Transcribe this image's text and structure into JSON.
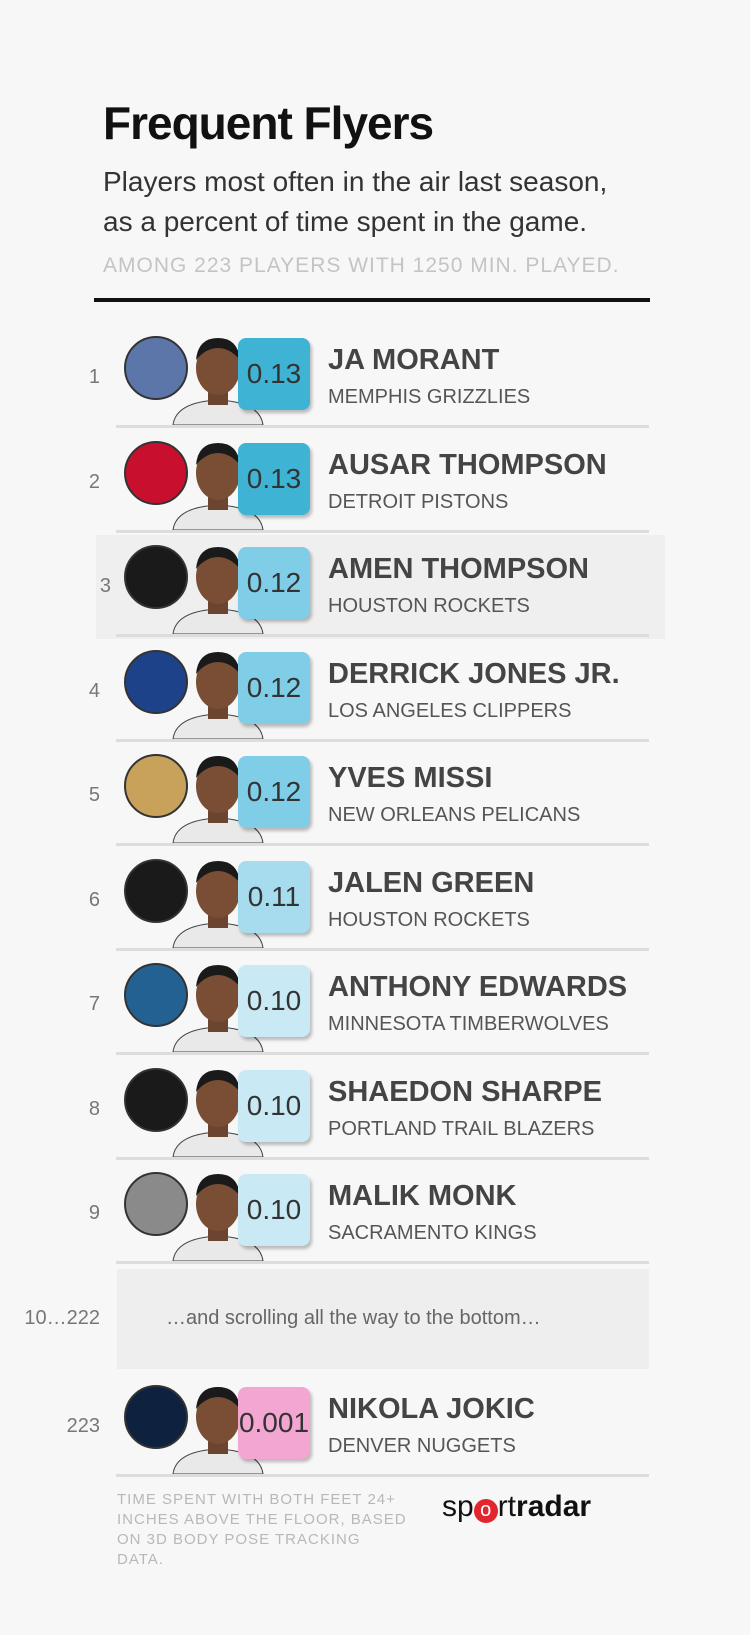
{
  "header": {
    "title": "Frequent Flyers",
    "subtitle_lines": [
      "Players most often in the air last season,",
      "as a percent of time spent in the game."
    ],
    "note": "AMONG 223 PLAYERS WITH 1250 MIN. PLAYED."
  },
  "rows": [
    {
      "rank": "1",
      "value": "0.13",
      "name": "JA MORANT",
      "team": "MEMPHIS GRIZZLIES",
      "badge_color": "#3fb3d4",
      "logo_color": "#5d76a9"
    },
    {
      "rank": "2",
      "value": "0.13",
      "name": "AUSAR THOMPSON",
      "team": "DETROIT PISTONS",
      "badge_color": "#3fb3d4",
      "logo_color": "#c8102e"
    },
    {
      "rank": "3",
      "value": "0.12",
      "name": "AMEN THOMPSON",
      "team": "HOUSTON ROCKETS",
      "badge_color": "#7fcde6",
      "logo_color": "#1a1a1a"
    },
    {
      "rank": "4",
      "value": "0.12",
      "name": "DERRICK JONES JR.",
      "team": "LOS ANGELES CLIPPERS",
      "badge_color": "#7fcde6",
      "logo_color": "#1d428a"
    },
    {
      "rank": "5",
      "value": "0.12",
      "name": "YVES MISSI",
      "team": "NEW ORLEANS PELICANS",
      "badge_color": "#7fcde6",
      "logo_color": "#c8a15a"
    },
    {
      "rank": "6",
      "value": "0.11",
      "name": "JALEN GREEN",
      "team": "HOUSTON ROCKETS",
      "badge_color": "#a6dcee",
      "logo_color": "#1a1a1a"
    },
    {
      "rank": "7",
      "value": "0.10",
      "name": "ANTHONY EDWARDS",
      "team": "MINNESOTA TIMBERWOLVES",
      "badge_color": "#c9eaf4",
      "logo_color": "#236192"
    },
    {
      "rank": "8",
      "value": "0.10",
      "name": "SHAEDON SHARPE",
      "team": "PORTLAND TRAIL BLAZERS",
      "badge_color": "#c9eaf4",
      "logo_color": "#1a1a1a"
    },
    {
      "rank": "9",
      "value": "0.10",
      "name": "MALIK MONK",
      "team": "SACRAMENTO KINGS",
      "badge_color": "#c9eaf4",
      "logo_color": "#8a8a8a"
    }
  ],
  "gap": {
    "rank": "10…222",
    "text": "…and scrolling all the way to the bottom…"
  },
  "last": {
    "rank": "223",
    "value": "0.001",
    "name": "NIKOLA JOKIC",
    "team": "DENVER NUGGETS",
    "badge_color": "#f4a6d2",
    "logo_color": "#0e2240"
  },
  "footer": {
    "note": "TIME SPENT WITH BOTH FEET 24+ INCHES ABOVE THE FLOOR, BASED ON 3D BODY POSE TRACKING DATA.",
    "brand_pre": "sp",
    "brand_mid": "o",
    "brand_post": "rt",
    "brand_bold": "radar"
  }
}
